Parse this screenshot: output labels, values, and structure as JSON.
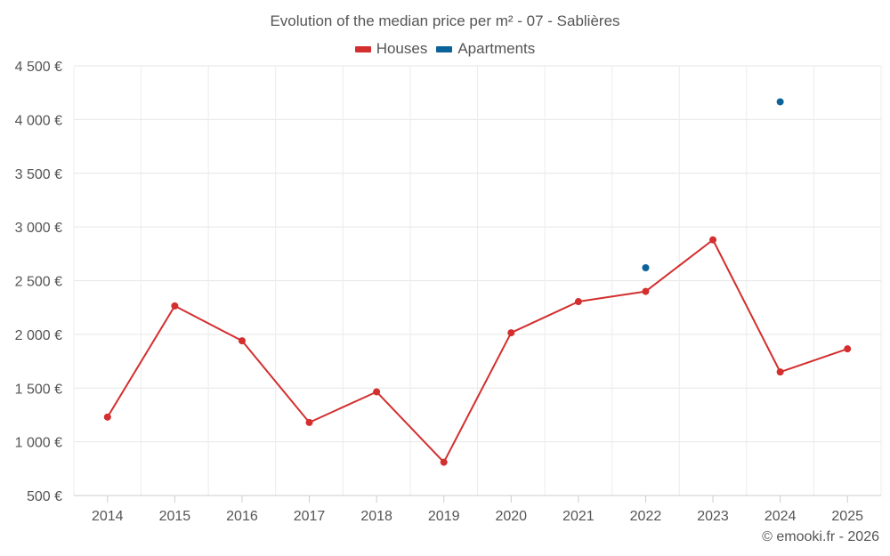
{
  "chart_data": {
    "type": "line",
    "title": "Evolution of the median price per m² - 07 - Sablières",
    "categories": [
      "2014",
      "2015",
      "2016",
      "2017",
      "2018",
      "2019",
      "2020",
      "2021",
      "2022",
      "2023",
      "2024",
      "2025"
    ],
    "series": [
      {
        "name": "Houses",
        "color": "#d32f2f",
        "values": [
          1230,
          2265,
          1940,
          1180,
          1465,
          810,
          2015,
          2305,
          2400,
          2880,
          1650,
          1865
        ]
      },
      {
        "name": "Apartments",
        "color": "#0b6399",
        "values": [
          null,
          null,
          null,
          null,
          null,
          null,
          null,
          null,
          2620,
          null,
          4165,
          null
        ]
      }
    ],
    "ylim": [
      500,
      4500
    ],
    "yticks": [
      500,
      1000,
      1500,
      2000,
      2500,
      3000,
      3500,
      4000,
      4500
    ],
    "ytick_labels": [
      "500 €",
      "1 000 €",
      "1 500 €",
      "2 000 €",
      "2 500 €",
      "3 000 €",
      "3 500 €",
      "4 000 €",
      "4 500 €"
    ],
    "xlabel": "",
    "ylabel": "",
    "grid": true,
    "legend_position": "top-center"
  },
  "credit": "© emooki.fr - 2026"
}
